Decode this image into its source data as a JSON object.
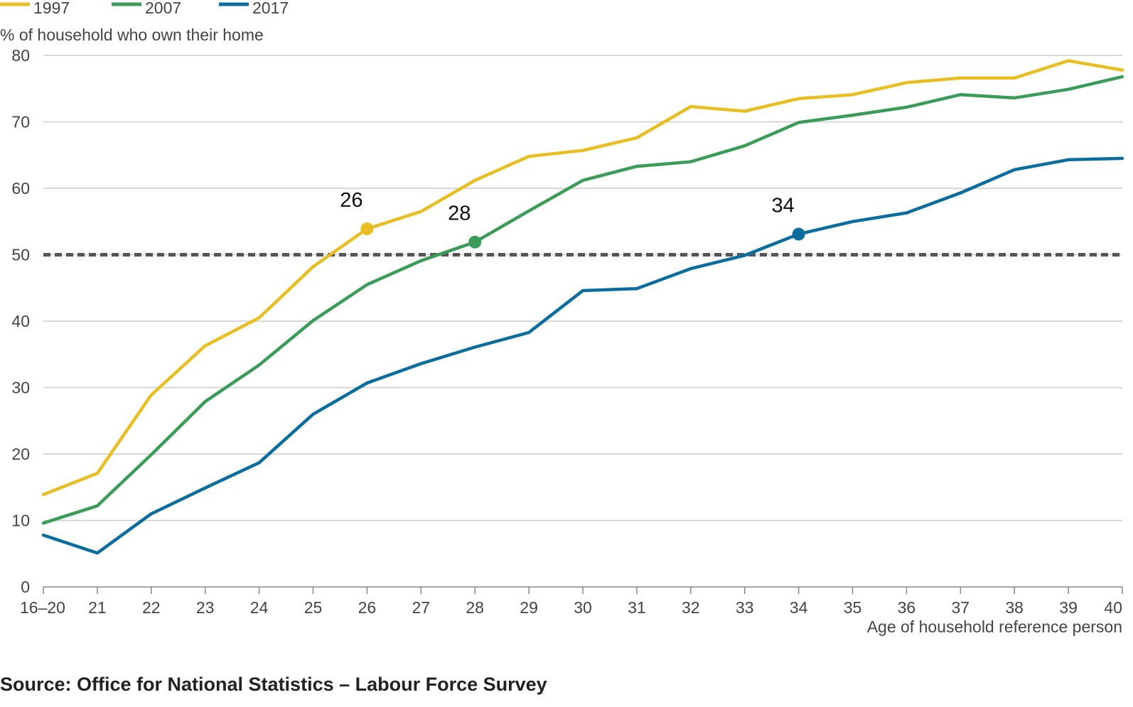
{
  "chart_data": {
    "type": "line",
    "title": "",
    "ylabel": "% of household who own their home",
    "xlabel": "Age of household reference person",
    "ylim": [
      0,
      80
    ],
    "yticks": [
      0,
      10,
      20,
      30,
      40,
      50,
      60,
      70,
      80
    ],
    "grid": true,
    "legend": {
      "placement": "top-left"
    },
    "categories": [
      "16–20",
      "21",
      "22",
      "23",
      "24",
      "25",
      "26",
      "27",
      "28",
      "29",
      "30",
      "31",
      "32",
      "33",
      "34",
      "35",
      "36",
      "37",
      "38",
      "39",
      "40"
    ],
    "series": [
      {
        "name": "1997",
        "color": "#e8be23",
        "values": [
          13.9,
          17.1,
          28.9,
          36.3,
          40.5,
          48.2,
          53.9,
          56.5,
          61.2,
          64.8,
          65.7,
          67.6,
          72.3,
          71.6,
          73.5,
          74.1,
          75.9,
          76.6,
          76.6,
          79.2,
          77.8
        ]
      },
      {
        "name": "2007",
        "color": "#3a9c58",
        "values": [
          9.6,
          12.2,
          19.9,
          27.9,
          33.4,
          40.1,
          45.5,
          49.1,
          51.9,
          56.6,
          61.2,
          63.3,
          64.0,
          66.4,
          69.9,
          71.0,
          72.2,
          74.1,
          73.6,
          74.9,
          76.8
        ]
      },
      {
        "name": "2017",
        "color": "#0b6d9e",
        "values": [
          7.8,
          5.1,
          11.0,
          14.9,
          18.7,
          26.0,
          30.7,
          33.6,
          36.1,
          38.3,
          44.6,
          44.9,
          47.9,
          49.9,
          53.1,
          55.0,
          56.3,
          59.3,
          62.8,
          64.3,
          64.5
        ]
      }
    ],
    "reference_line": {
      "value": 50,
      "style": "dashed",
      "color": "#555555"
    },
    "annotations": [
      {
        "label": "26",
        "category": "26",
        "series": "1997",
        "value": 53.9
      },
      {
        "label": "28",
        "category": "28",
        "series": "2007",
        "value": 51.9
      },
      {
        "label": "34",
        "category": "34",
        "series": "2017",
        "value": 53.1
      }
    ]
  },
  "source": "Source: Office for National Statistics – Labour Force Survey",
  "colors": {
    "grid": "#cccccc",
    "axis": "#888888",
    "text": "#444444"
  }
}
